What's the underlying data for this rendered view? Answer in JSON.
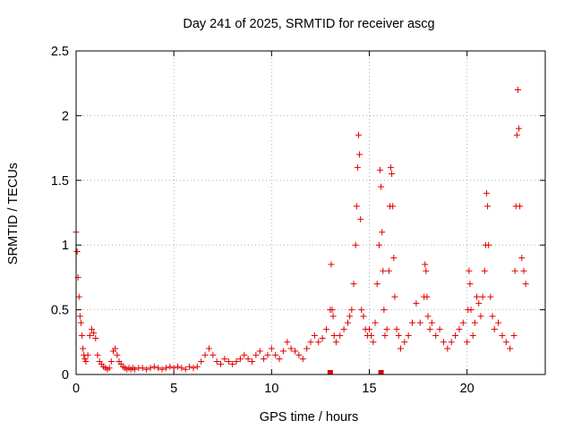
{
  "chart_data": {
    "type": "scatter",
    "title": "Day 241 of 2025, SRMTID for receiver ascg",
    "xlabel": "GPS time / hours",
    "ylabel": "SRMTID / TECUs",
    "xlim": [
      0,
      24
    ],
    "ylim": [
      0,
      2.5
    ],
    "xticks": [
      0,
      5,
      10,
      15,
      20
    ],
    "yticks": [
      0,
      0.5,
      1,
      1.5,
      2,
      2.5
    ],
    "xtick_labels": [
      "0",
      "5",
      "10",
      "15",
      "20"
    ],
    "ytick_labels": [
      "0",
      "0.5",
      "1",
      "1.5",
      "2",
      "2.5"
    ],
    "grid": true,
    "marker": "+",
    "series": [
      {
        "name": "SRMTID",
        "color": "#e00000",
        "x": [
          0.0,
          0.05,
          0.1,
          0.15,
          0.2,
          0.25,
          0.3,
          0.35,
          0.4,
          0.45,
          0.5,
          0.6,
          0.7,
          0.8,
          0.9,
          1.0,
          1.1,
          1.2,
          1.3,
          1.4,
          1.5,
          1.6,
          1.7,
          1.8,
          1.9,
          2.0,
          2.1,
          2.2,
          2.3,
          2.4,
          2.5,
          2.6,
          2.7,
          2.8,
          2.9,
          3.0,
          3.2,
          3.4,
          3.6,
          3.8,
          4.0,
          4.2,
          4.4,
          4.6,
          4.8,
          5.0,
          5.2,
          5.4,
          5.6,
          5.8,
          6.0,
          6.2,
          6.4,
          6.6,
          6.8,
          7.0,
          7.2,
          7.4,
          7.6,
          7.8,
          8.0,
          8.2,
          8.4,
          8.6,
          8.8,
          9.0,
          9.2,
          9.4,
          9.6,
          9.8,
          10.0,
          10.2,
          10.4,
          10.6,
          10.8,
          11.0,
          11.2,
          11.4,
          11.6,
          11.8,
          12.0,
          12.2,
          12.4,
          12.6,
          12.8,
          13.0,
          13.05,
          13.1,
          13.15,
          13.2,
          13.3,
          13.5,
          13.7,
          13.9,
          14.0,
          14.1,
          14.2,
          14.3,
          14.35,
          14.4,
          14.45,
          14.5,
          14.55,
          14.6,
          14.7,
          14.8,
          14.9,
          15.0,
          15.1,
          15.2,
          15.3,
          15.4,
          15.5,
          15.55,
          15.6,
          15.65,
          15.7,
          15.75,
          15.8,
          15.9,
          16.0,
          16.05,
          16.1,
          16.15,
          16.2,
          16.25,
          16.3,
          16.4,
          16.5,
          16.6,
          16.8,
          17.0,
          17.2,
          17.4,
          17.6,
          17.8,
          17.85,
          17.9,
          17.95,
          18.0,
          18.1,
          18.2,
          18.4,
          18.6,
          18.8,
          19.0,
          19.2,
          19.4,
          19.6,
          19.8,
          20.0,
          20.05,
          20.1,
          20.15,
          20.2,
          20.3,
          20.4,
          20.5,
          20.6,
          20.7,
          20.8,
          20.9,
          20.95,
          21.0,
          21.05,
          21.1,
          21.2,
          21.3,
          21.4,
          21.6,
          21.8,
          22.0,
          22.2,
          22.4,
          22.45,
          22.5,
          22.55,
          22.6,
          22.65,
          22.7,
          22.8,
          22.9,
          23.0
        ],
        "y": [
          1.1,
          0.95,
          0.75,
          0.6,
          0.45,
          0.4,
          0.3,
          0.2,
          0.15,
          0.12,
          0.1,
          0.15,
          0.3,
          0.35,
          0.32,
          0.28,
          0.15,
          0.1,
          0.08,
          0.06,
          0.05,
          0.04,
          0.05,
          0.1,
          0.18,
          0.2,
          0.15,
          0.1,
          0.08,
          0.06,
          0.05,
          0.04,
          0.05,
          0.04,
          0.05,
          0.04,
          0.05,
          0.05,
          0.04,
          0.05,
          0.06,
          0.05,
          0.04,
          0.05,
          0.06,
          0.05,
          0.06,
          0.05,
          0.04,
          0.06,
          0.05,
          0.06,
          0.1,
          0.15,
          0.2,
          0.15,
          0.1,
          0.08,
          0.12,
          0.1,
          0.08,
          0.1,
          0.12,
          0.15,
          0.12,
          0.1,
          0.15,
          0.18,
          0.12,
          0.15,
          0.2,
          0.15,
          0.12,
          0.18,
          0.25,
          0.2,
          0.18,
          0.15,
          0.12,
          0.2,
          0.25,
          0.3,
          0.25,
          0.28,
          0.35,
          0.5,
          0.85,
          0.5,
          0.45,
          0.3,
          0.25,
          0.3,
          0.35,
          0.4,
          0.45,
          0.5,
          0.7,
          1.0,
          1.3,
          1.6,
          1.85,
          1.7,
          1.2,
          0.5,
          0.45,
          0.35,
          0.3,
          0.35,
          0.3,
          0.25,
          0.4,
          0.7,
          1.0,
          1.58,
          1.45,
          1.1,
          0.8,
          0.5,
          0.3,
          0.35,
          0.8,
          1.3,
          1.6,
          1.55,
          1.3,
          0.9,
          0.6,
          0.35,
          0.3,
          0.2,
          0.25,
          0.3,
          0.4,
          0.55,
          0.4,
          0.6,
          0.85,
          0.8,
          0.6,
          0.45,
          0.35,
          0.4,
          0.3,
          0.35,
          0.25,
          0.2,
          0.25,
          0.3,
          0.35,
          0.4,
          0.25,
          0.5,
          0.8,
          0.7,
          0.5,
          0.3,
          0.4,
          0.6,
          0.55,
          0.45,
          0.6,
          0.8,
          1.0,
          1.4,
          1.3,
          1.0,
          0.6,
          0.45,
          0.35,
          0.4,
          0.3,
          0.25,
          0.2,
          0.3,
          0.8,
          1.3,
          1.85,
          2.2,
          1.9,
          1.3,
          0.9,
          0.8,
          0.7
        ],
        "sentinel_points": {
          "x": [
            13.0,
            15.6
          ],
          "y": [
            0,
            0
          ]
        }
      }
    ]
  }
}
